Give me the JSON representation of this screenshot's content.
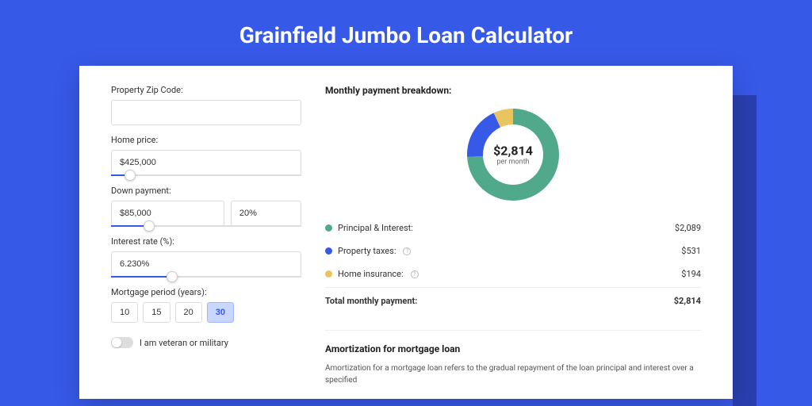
{
  "page": {
    "title": "Grainfield Jumbo Loan Calculator",
    "background_color": "#3759e8",
    "shadow_color": "#2a3fb0",
    "card_background": "#ffffff"
  },
  "form": {
    "zip": {
      "label": "Property Zip Code:",
      "value": ""
    },
    "home_price": {
      "label": "Home price:",
      "value": "$425,000",
      "slider_pct": 10
    },
    "down_payment": {
      "label": "Down payment:",
      "value": "$85,000",
      "pct_value": "20%",
      "slider_pct": 20
    },
    "interest_rate": {
      "label": "Interest rate (%):",
      "value": "6.230%",
      "slider_pct": 32
    },
    "mortgage_period": {
      "label": "Mortgage period (years):",
      "options": [
        "10",
        "15",
        "20",
        "30"
      ],
      "selected_index": 3
    },
    "veteran": {
      "label": "I am veteran or military",
      "checked": false
    }
  },
  "breakdown": {
    "title": "Monthly payment breakdown:",
    "center_amount": "$2,814",
    "center_sub": "per month",
    "donut": {
      "slices": [
        {
          "label": "Principal & Interest:",
          "value": "$2,089",
          "color": "#4fa98a",
          "pct": 74.2,
          "info": false
        },
        {
          "label": "Property taxes:",
          "value": "$531",
          "color": "#3759e8",
          "pct": 18.9,
          "info": true
        },
        {
          "label": "Home insurance:",
          "value": "$194",
          "color": "#e9c561",
          "pct": 6.9,
          "info": true
        }
      ]
    },
    "total": {
      "label": "Total monthly payment:",
      "value": "$2,814"
    }
  },
  "amortization": {
    "title": "Amortization for mortgage loan",
    "text": "Amortization for a mortgage loan refers to the gradual repayment of the loan principal and interest over a specified"
  }
}
